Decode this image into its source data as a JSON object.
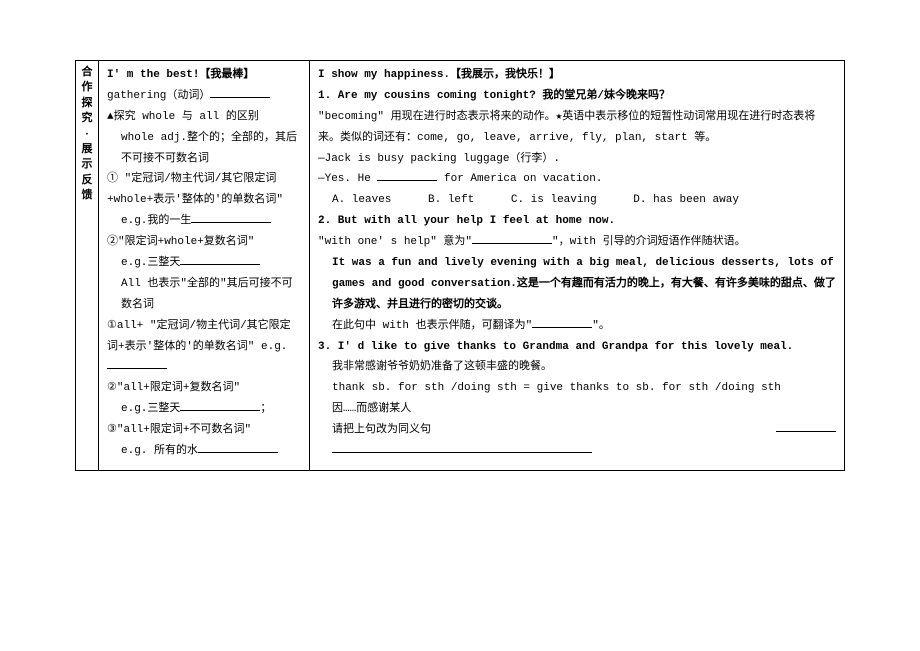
{
  "side": {
    "top1": "合",
    "top2": "作",
    "top3": "探",
    "top4": "究",
    "dot": "·",
    "bot1": "展",
    "bot2": "示",
    "bot3": "反",
    "bot4": "馈"
  },
  "left": {
    "h1": "I' m the best!【我最棒】",
    "p1a": "gathering（动词）",
    "p2": "▲探究 whole 与 all 的区别",
    "p3": "whole adj.整个的；全部的，其后不可接不可数名词",
    "p4": "① \"定冠词/物主代词/其它限定词+whole+表示'整体的'的单数名词\"",
    "p5a": "e.g.我的一生",
    "p6": "②\"限定词+whole+复数名词\"",
    "p7a": "e.g.三整天",
    "p8": "All 也表示\"全部的\"其后可接不可数名词",
    "p9a": "①all+ \"定冠词/物主代词/其它限定词+表示'整体的'的单数名词\" e.g. ",
    "p10": "②\"all+限定词+复数名词\"",
    "p11a": "e.g.三整天",
    "p11b": "；",
    "p12": "③\"all+限定词+不可数名词\"",
    "p13a": "e.g. 所有的水"
  },
  "right": {
    "h1": "I show my happiness.【我展示，我快乐！】",
    "q1": "1. Are my cousins coming tonight? 我的堂兄弟/妹今晚来吗？",
    "q1note": "\"becoming\" 用现在进行时态表示将来的动作。★英语中表示移位的短暂性动词常用现在进行时态表将来。类似的词还有：come, go, leave, arrive, fly, plan, start 等。",
    "q1s1": "—Jack is busy packing luggage（行李）.",
    "q1s2a": "—Yes. He ",
    "q1s2b": " for America on vacation.",
    "optA": "A. leaves",
    "optB": "B. left",
    "optC": "C. is leaving",
    "optD": "D. has been away",
    "q2": "2. But with all your help I feel at home now.",
    "q2note_a": "\"with one' s help\" 意为\"",
    "q2note_b": "\"，with 引导的介词短语作伴随状语。",
    "q2ex": "It was a fun and lively evening with a big meal, delicious desserts, lots of games and good conversation.这是一个有趣而有活力的晚上，有大餐、有许多美味的甜点、做了许多游戏、并且进行的密切的交谈。",
    "q2in_a": "在此句中 with 也表示伴随，可翻译为\"",
    "q2in_b": "\"。",
    "q3": "3. I' d like to give thanks to Grandma and Grandpa for this lovely meal.",
    "q3c": "我非常感谢爷爷奶奶准备了这顿丰盛的晚餐。",
    "q3r": "thank sb. for sth /doing sth = give thanks to sb. for sth /doing sth",
    "q3m": "因……而感谢某人",
    "q3t": "请把上句改为同义句"
  }
}
